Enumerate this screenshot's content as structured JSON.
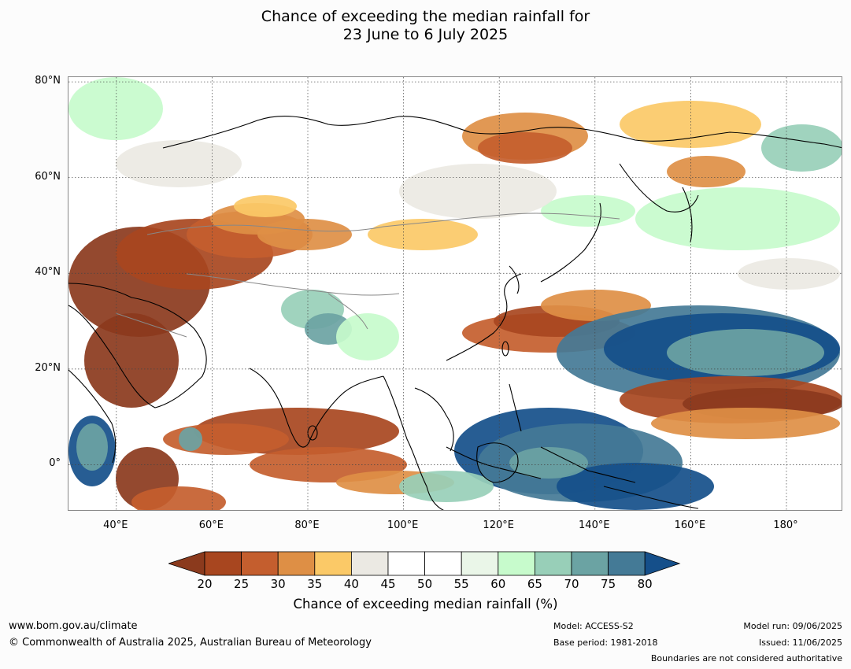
{
  "title": {
    "line1": "Chance of exceeding the median rainfall for",
    "line2": "23 June to 6 July 2025"
  },
  "map": {
    "lat_labels": [
      "80°N",
      "60°N",
      "40°N",
      "20°N",
      "0°"
    ],
    "lon_labels": [
      "40°E",
      "60°E",
      "80°E",
      "100°E",
      "120°E",
      "140°E",
      "160°E",
      "180°"
    ],
    "lat_values": [
      80,
      60,
      40,
      20,
      0
    ],
    "lon_values": [
      40,
      60,
      80,
      100,
      120,
      140,
      160,
      180
    ]
  },
  "colorbar": {
    "ticks": [
      "20",
      "25",
      "30",
      "35",
      "40",
      "45",
      "50",
      "55",
      "60",
      "65",
      "70",
      "75",
      "80"
    ],
    "under_color": "#8b3a1d",
    "over_color": "#154f8a",
    "colors": [
      "#a8461f",
      "#c45e2e",
      "#de8f45",
      "#fbc967",
      "#ebe9e3",
      "#ffffff",
      "#ffffff",
      "#eaf6e8",
      "#c7fbcc",
      "#98cfb8",
      "#6ba3a3",
      "#447a96"
    ],
    "label": "Chance of exceeding median rainfall (%)"
  },
  "footer": {
    "url": "www.bom.gov.au/climate",
    "copyright": "© Commonwealth of Australia 2025, Australian Bureau of Meteorology",
    "model": "Model: ACCESS-S2",
    "base_period": "Base period: 1981-2018",
    "model_run": "Model run: 09/06/2025",
    "issued": "Issued: 11/06/2025",
    "disclaimer": "Boundaries are not considered authoritative"
  }
}
